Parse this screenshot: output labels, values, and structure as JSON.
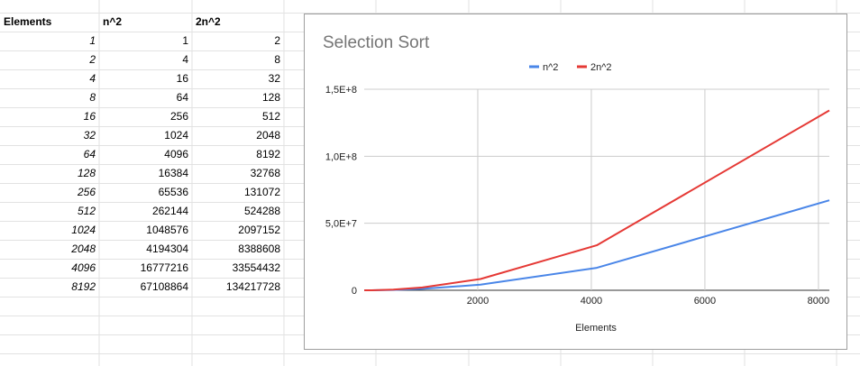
{
  "sheet": {
    "headers": [
      "Elements",
      "n^2",
      "2n^2"
    ],
    "rows": [
      [
        "1",
        "1",
        "2"
      ],
      [
        "2",
        "4",
        "8"
      ],
      [
        "4",
        "16",
        "32"
      ],
      [
        "8",
        "64",
        "128"
      ],
      [
        "16",
        "256",
        "512"
      ],
      [
        "32",
        "1024",
        "2048"
      ],
      [
        "64",
        "4096",
        "8192"
      ],
      [
        "128",
        "16384",
        "32768"
      ],
      [
        "256",
        "65536",
        "131072"
      ],
      [
        "512",
        "262144",
        "524288"
      ],
      [
        "1024",
        "1048576",
        "2097152"
      ],
      [
        "2048",
        "4194304",
        "8388608"
      ],
      [
        "4096",
        "16777216",
        "33554432"
      ],
      [
        "8192",
        "67108864",
        "134217728"
      ]
    ]
  },
  "colors": {
    "series1": "#4a86e8",
    "series2": "#e53935",
    "grid": "#cccccc",
    "sheet_lines": "#e2e2e2"
  },
  "chart_data": {
    "type": "line",
    "title": "Selection Sort",
    "xlabel": "Elements",
    "ylabel": "",
    "x": [
      1,
      2,
      4,
      8,
      16,
      32,
      64,
      128,
      256,
      512,
      1024,
      2048,
      4096,
      8192
    ],
    "series": [
      {
        "name": "n^2",
        "values": [
          1,
          4,
          16,
          64,
          256,
          1024,
          4096,
          16384,
          65536,
          262144,
          1048576,
          4194304,
          16777216,
          67108864
        ]
      },
      {
        "name": "2n^2",
        "values": [
          2,
          8,
          32,
          128,
          512,
          2048,
          8192,
          32768,
          131072,
          524288,
          2097152,
          8388608,
          33554432,
          134217728
        ]
      }
    ],
    "xlim": [
      0,
      8192
    ],
    "ylim": [
      0,
      150000000
    ],
    "xticks": [
      2000,
      4000,
      6000,
      8000
    ],
    "xtick_labels": [
      "2000",
      "4000",
      "6000",
      "8000"
    ],
    "yticks": [
      0,
      50000000,
      100000000,
      150000000
    ],
    "ytick_labels": [
      "0",
      "5,0E+7",
      "1,0E+8",
      "1,5E+8"
    ],
    "grid": true,
    "legend": "top-center"
  }
}
